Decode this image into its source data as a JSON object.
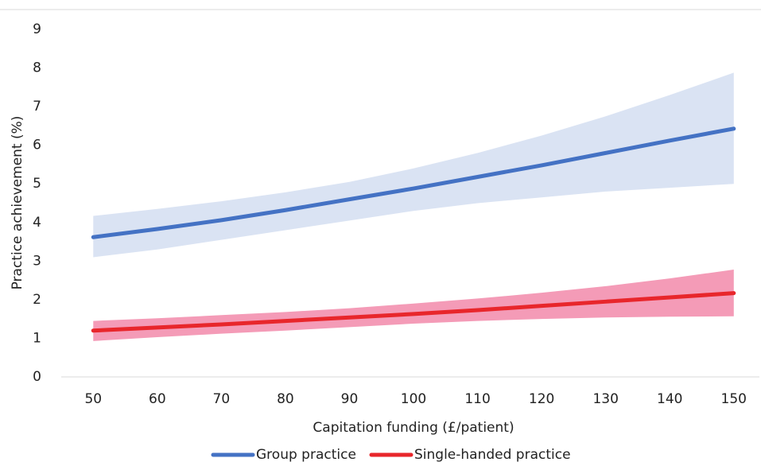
{
  "chart_data": {
    "type": "line",
    "x_label": "Capitation funding (£/patient)",
    "y_label": "Practice achievement (%)",
    "x": [
      50,
      60,
      70,
      80,
      90,
      100,
      110,
      120,
      130,
      140,
      150
    ],
    "series": [
      {
        "name": "Group practice",
        "color": "#4472c4",
        "band_color": "#dae3f3",
        "values": [
          3.62,
          3.83,
          4.06,
          4.32,
          4.6,
          4.88,
          5.18,
          5.48,
          5.8,
          6.12,
          6.43
        ],
        "lower": [
          3.1,
          3.3,
          3.55,
          3.8,
          4.05,
          4.3,
          4.5,
          4.65,
          4.8,
          4.9,
          5.0
        ],
        "upper": [
          4.17,
          4.35,
          4.55,
          4.78,
          5.05,
          5.4,
          5.8,
          6.25,
          6.75,
          7.3,
          7.88
        ]
      },
      {
        "name": "Single-handed practice",
        "color": "#e8262b",
        "band_color": "#f49bb7",
        "values": [
          1.2,
          1.28,
          1.36,
          1.45,
          1.54,
          1.63,
          1.73,
          1.84,
          1.95,
          2.06,
          2.17
        ],
        "lower": [
          0.93,
          1.03,
          1.12,
          1.2,
          1.29,
          1.38,
          1.45,
          1.5,
          1.54,
          1.56,
          1.57
        ],
        "upper": [
          1.45,
          1.52,
          1.6,
          1.68,
          1.78,
          1.9,
          2.03,
          2.18,
          2.35,
          2.55,
          2.78
        ]
      }
    ],
    "xlim": [
      45,
      154
    ],
    "xticks": [
      50,
      60,
      70,
      80,
      90,
      100,
      110,
      120,
      130,
      140,
      150
    ],
    "ylim": [
      0,
      9
    ],
    "yticks": [
      0,
      1,
      2,
      3,
      4,
      5,
      6,
      7,
      8,
      9
    ],
    "grid": false,
    "legend": "bottom"
  }
}
